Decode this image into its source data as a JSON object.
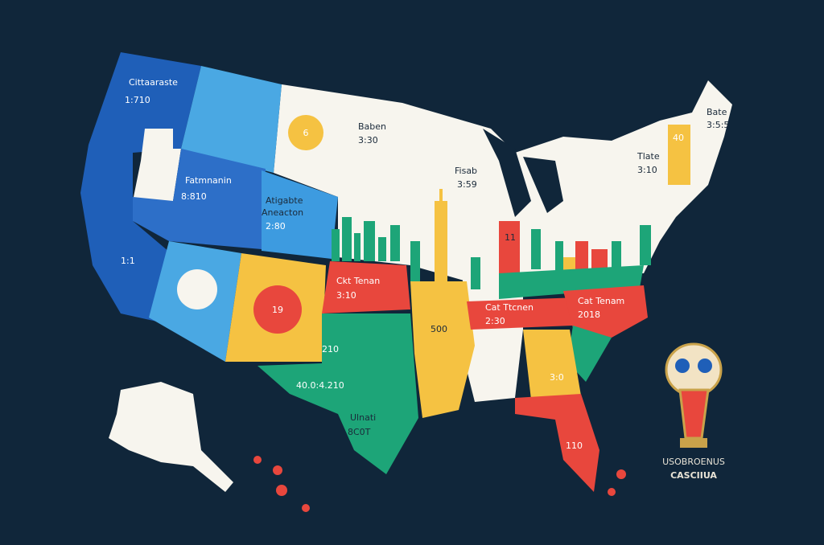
{
  "regions": [
    {
      "name": "Cittaaraste",
      "value": "1:710"
    },
    {
      "name": "Baben",
      "value": "3:30"
    },
    {
      "value": "6"
    },
    {
      "name": "Fatmnanin",
      "value": "8:810"
    },
    {
      "name": "Atigabte",
      "subname": "Aneacton",
      "value": "2:80"
    },
    {
      "value": "1:1"
    },
    {
      "name": "Fisab",
      "value": "3:59"
    },
    {
      "value": "19"
    },
    {
      "name": "Ckt Tenan",
      "value": "3:10"
    },
    {
      "value": "210"
    },
    {
      "value": "40.0:4.210"
    },
    {
      "name": "Ulnati",
      "value": "8C0T"
    },
    {
      "value": "500"
    },
    {
      "name": "Cat Ttcnen",
      "value": "2:30"
    },
    {
      "name": "Cat Tenam",
      "value": "2018"
    },
    {
      "value": "110"
    },
    {
      "value": "3:0"
    },
    {
      "name": "Bate",
      "value": "3:5:5"
    },
    {
      "value": "40"
    },
    {
      "name": "Tlate",
      "value": "3:10"
    },
    {
      "value": "11"
    }
  ],
  "logo": {
    "line1": "USOBROENUS",
    "line2": "CASCIIUA"
  }
}
